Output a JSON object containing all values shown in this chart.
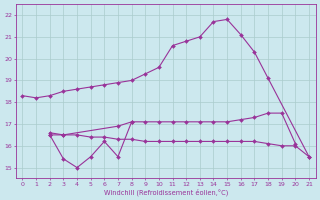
{
  "color": "#993399",
  "bg_color": "#cce8ee",
  "grid_color": "#aacccc",
  "xlabel": "Windchill (Refroidissement éolien,°C)",
  "xlim": [
    -0.5,
    21.5
  ],
  "ylim": [
    14.5,
    22.5
  ],
  "yticks": [
    15,
    16,
    17,
    18,
    19,
    20,
    21,
    22
  ],
  "xticks": [
    0,
    1,
    2,
    3,
    4,
    5,
    6,
    7,
    8,
    9,
    10,
    11,
    12,
    13,
    14,
    15,
    16,
    17,
    18,
    19,
    20,
    21
  ],
  "line1_x": [
    0,
    1,
    2,
    3,
    4,
    5,
    6,
    7,
    8,
    9,
    10,
    11,
    12,
    13,
    14,
    15,
    16,
    17,
    18,
    21
  ],
  "line1_y": [
    18.3,
    18.2,
    18.3,
    18.5,
    18.6,
    18.7,
    18.8,
    18.9,
    19.0,
    19.3,
    19.6,
    20.6,
    20.8,
    21.0,
    21.7,
    21.8,
    21.1,
    20.3,
    19.1,
    15.5
  ],
  "line2_x": [
    2,
    3,
    7,
    8,
    9,
    10,
    11,
    12,
    13,
    14,
    15,
    16,
    17,
    18,
    19,
    20
  ],
  "line2_y": [
    16.6,
    16.5,
    16.9,
    17.1,
    17.1,
    17.1,
    17.1,
    17.1,
    17.1,
    17.1,
    17.1,
    17.2,
    17.3,
    17.5,
    17.5,
    16.1
  ],
  "line3_x": [
    2,
    3,
    4,
    5,
    6,
    7,
    8,
    9,
    10,
    11,
    12,
    13,
    14,
    15,
    16,
    17,
    18,
    19,
    20,
    21
  ],
  "line3_y": [
    16.5,
    16.5,
    16.5,
    16.4,
    16.4,
    16.3,
    16.3,
    16.2,
    16.2,
    16.2,
    16.2,
    16.2,
    16.2,
    16.2,
    16.2,
    16.2,
    16.1,
    16.0,
    16.0,
    15.5
  ],
  "line4_x": [
    2,
    3,
    4,
    5,
    6,
    7,
    8
  ],
  "line4_y": [
    16.5,
    15.4,
    15.0,
    15.5,
    16.2,
    15.5,
    17.1
  ]
}
